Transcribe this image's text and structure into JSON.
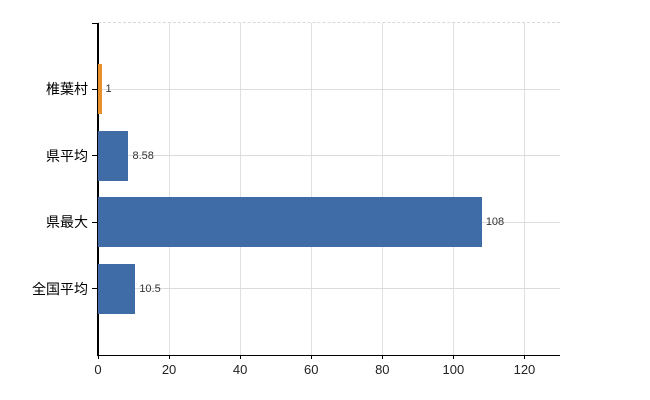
{
  "chart_data": {
    "type": "bar",
    "orientation": "horizontal",
    "title": "",
    "xlabel": "",
    "ylabel": "",
    "categories": [
      "椎葉村",
      "県平均",
      "県最大",
      "全国平均"
    ],
    "values": [
      1,
      8.58,
      108,
      10.5
    ],
    "value_labels": [
      "1",
      "8.58",
      "108",
      "10.5"
    ],
    "bar_colors": [
      "#e8912c",
      "#3f6ca7",
      "#3f6ca7",
      "#3f6ca7"
    ],
    "x_ticks": [
      0,
      20,
      40,
      60,
      80,
      100,
      120
    ],
    "xlim": [
      0,
      130
    ],
    "grid": true,
    "legend": "none",
    "background_color": "#ffffff",
    "axis_color": "#000000",
    "gridline_color": "#dcdcdc"
  }
}
